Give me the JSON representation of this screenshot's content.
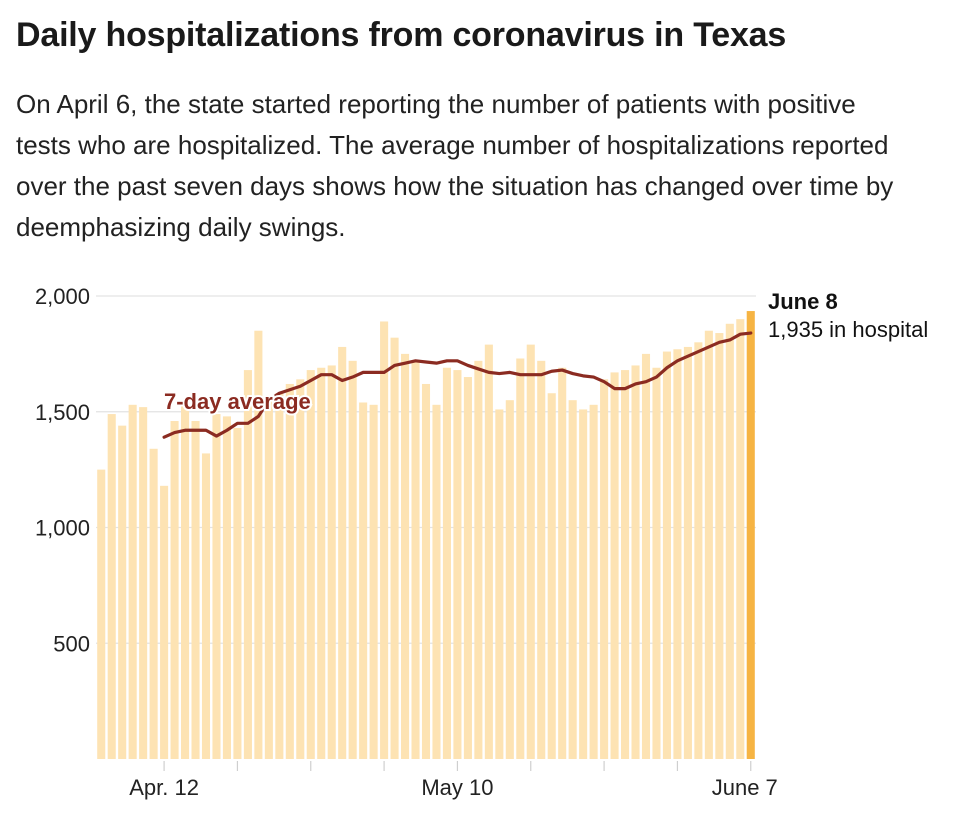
{
  "header": {
    "title": "Daily hospitalizations from coronavirus in Texas",
    "subtitle": "On April 6, the state started reporting the number of patients with positive tests who are hospitalized. The average number of hospitalizations reported over the past seven days shows how the situation has changed over time by deemphasizing daily swings."
  },
  "colors": {
    "bar": "#fde3b3",
    "bar_highlight": "#f6b443",
    "avg_line": "#8b2b21",
    "grid": "#e3e3e3",
    "text": "#222222"
  },
  "chart_data": {
    "type": "bar",
    "title": "Daily hospitalizations from coronavirus in Texas",
    "start_date": "2020-04-06",
    "end_date": "2020-06-08",
    "x_tick_labels": [
      "Apr. 12",
      "May 10",
      "June 7"
    ],
    "y_ticks": [
      500,
      1000,
      1500,
      2000
    ],
    "y_tick_labels": [
      "500",
      "1,000",
      "1,500",
      "2,000"
    ],
    "ylim": [
      0,
      2000
    ],
    "grid": true,
    "series": [
      {
        "name": "Daily hospitalizations",
        "type": "bar",
        "values": [
          1250,
          1490,
          1440,
          1530,
          1520,
          1340,
          1180,
          1460,
          1530,
          1460,
          1320,
          1490,
          1480,
          1430,
          1680,
          1850,
          1560,
          1580,
          1620,
          1640,
          1680,
          1690,
          1700,
          1780,
          1720,
          1540,
          1530,
          1890,
          1820,
          1750,
          1720,
          1620,
          1530,
          1690,
          1680,
          1650,
          1720,
          1790,
          1510,
          1550,
          1730,
          1790,
          1720,
          1580,
          1690,
          1550,
          1510,
          1530,
          1640,
          1670,
          1680,
          1700,
          1750,
          1690,
          1760,
          1770,
          1780,
          1800,
          1850,
          1840,
          1880,
          1900,
          1935
        ]
      },
      {
        "name": "7-day average",
        "type": "line",
        "start_index": 6,
        "values": [
          1390,
          1410,
          1420,
          1420,
          1420,
          1395,
          1420,
          1450,
          1450,
          1480,
          1550,
          1580,
          1595,
          1610,
          1635,
          1660,
          1660,
          1635,
          1650,
          1670,
          1670,
          1670,
          1700,
          1710,
          1720,
          1715,
          1710,
          1720,
          1720,
          1700,
          1685,
          1670,
          1665,
          1670,
          1660,
          1660,
          1660,
          1675,
          1680,
          1665,
          1655,
          1650,
          1630,
          1600,
          1600,
          1620,
          1630,
          1650,
          1690,
          1720,
          1740,
          1760,
          1780,
          1800,
          1810,
          1835,
          1840
        ]
      }
    ],
    "annotations": [
      {
        "text": "7-day average"
      },
      {
        "text": "June 8",
        "bold": true
      },
      {
        "text": "1,935 in hospital"
      }
    ]
  }
}
